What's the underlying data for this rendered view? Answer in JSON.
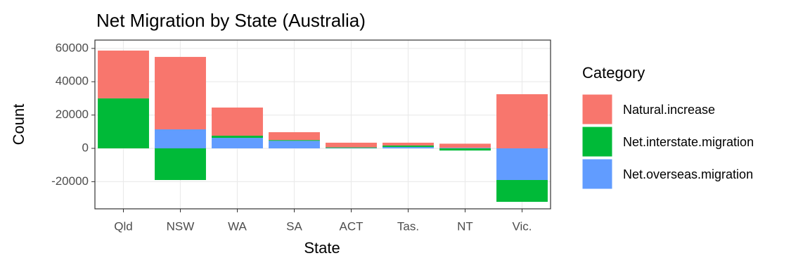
{
  "chart_data": {
    "type": "bar",
    "stacked": true,
    "title": "Net Migration by State (Australia)",
    "x_label": "State",
    "y_label": "Count",
    "legend_title": "Category",
    "categories": [
      "Qld",
      "NSW",
      "WA",
      "SA",
      "ACT",
      "Tas.",
      "NT",
      "Vic."
    ],
    "series": [
      {
        "name": "Natural.increase",
        "color": "#F8766D",
        "values": [
          28700,
          43500,
          16900,
          4700,
          2800,
          1700,
          2500,
          32500
        ]
      },
      {
        "name": "Net.interstate.migration",
        "color": "#00BA38",
        "values": [
          30000,
          -19000,
          1300,
          500,
          400,
          900,
          -1300,
          -13100
        ]
      },
      {
        "name": "Net.overseas.migration",
        "color": "#619CFF",
        "values": [
          0,
          11400,
          6300,
          4500,
          200,
          800,
          300,
          -19000
        ]
      }
    ],
    "ylim": [
      -36300,
      65000
    ],
    "yticks": [
      -20000,
      0,
      20000,
      40000,
      60000
    ],
    "grid": true
  }
}
